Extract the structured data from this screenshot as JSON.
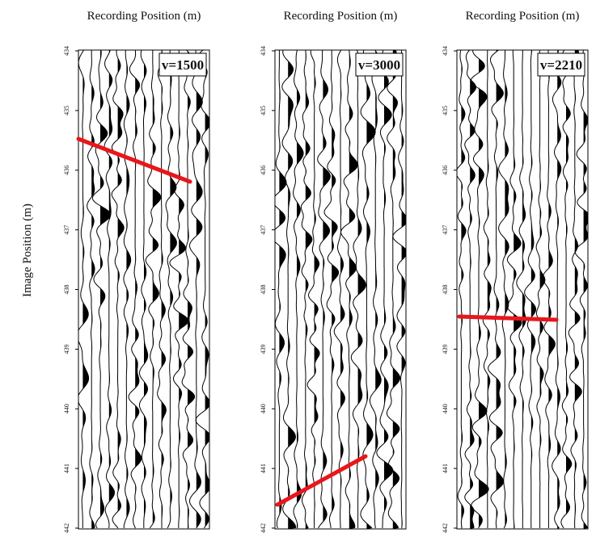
{
  "figure": {
    "y_axis_label": "Image Position (m)",
    "panels": [
      {
        "x_axis_label": "Recording Position (m)",
        "velocity_label": "v=1500",
        "y_tick_labels": [
          "434",
          "435",
          "436",
          "437",
          "438",
          "439",
          "440",
          "441",
          "442"
        ]
      },
      {
        "x_axis_label": "Recording Position (m)",
        "velocity_label": "v=3000",
        "y_tick_labels": [
          "434",
          "435",
          "436",
          "437",
          "438",
          "439",
          "440",
          "441",
          "442"
        ]
      },
      {
        "x_axis_label": "Recording Position (m)",
        "velocity_label": "v=2210",
        "y_tick_labels": [
          "434",
          "435",
          "436",
          "437",
          "438",
          "439",
          "440",
          "441",
          "442"
        ]
      }
    ]
  }
}
